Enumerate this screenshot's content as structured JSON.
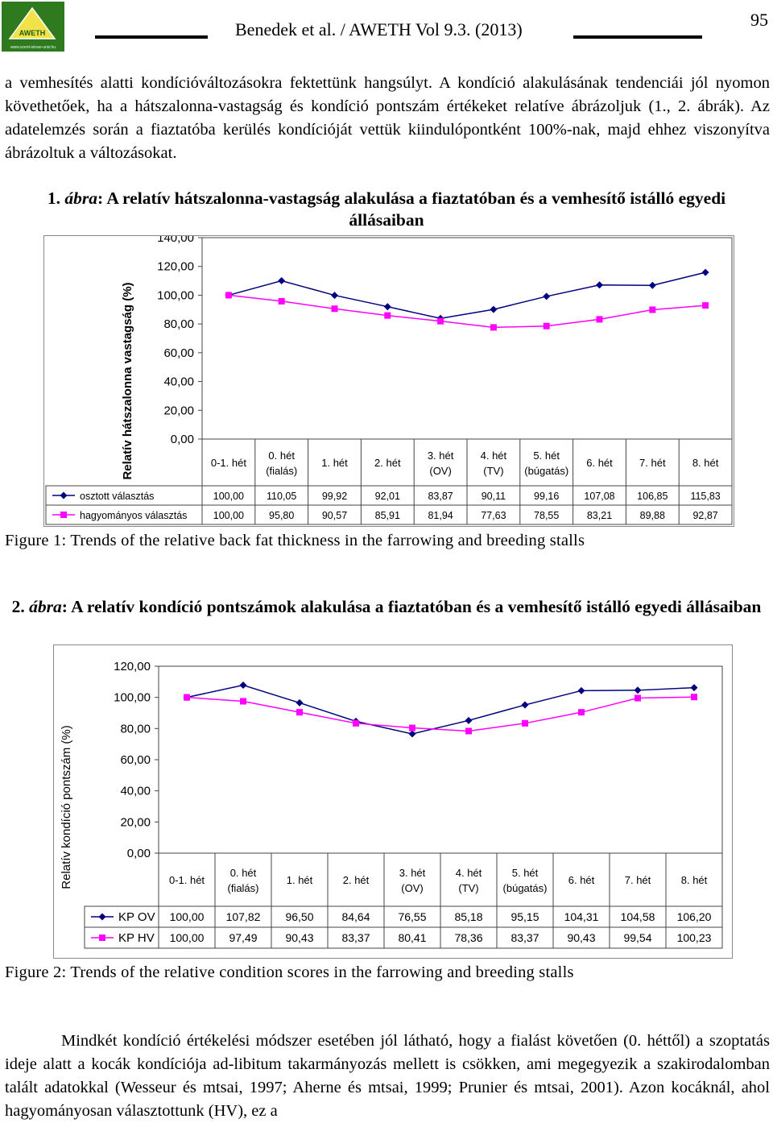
{
  "header": {
    "logo_text": "AWETH",
    "logo_url": "www.szent-istvan-univ.hu",
    "running_head": "Benedek et al. / AWETH Vol 9.3. (2013)",
    "page_number": "95"
  },
  "intro_paragraph": "a vemhesítés alatti kondícióváltozásokra fektettünk hangsúlyt. A kondíció alakulásának tendenciái jól nyomon követhetőek, ha a hátszalonna-vastagság és kondíció pontszám értékeket relatíve ábrázoljuk (1., 2. ábrák). Az adatelemzés során a fiaztatóba kerülés kondícióját vettük kiindulópontként 100%-nak, majd ehhez viszonyítva ábrázoltuk a változásokat.",
  "figure1": {
    "caption_num": "1.",
    "caption_word": "ábra",
    "caption_text": ": A relatív hátszalonna-vastagság alakulása a fiaztatóban és a vemhesítő istálló egyedi állásaiban",
    "english_caption": "Figure 1: Trends of the relative back fat thickness in the farrowing and breeding stalls"
  },
  "figure2": {
    "caption_num": "2.",
    "caption_word": "ábra",
    "caption_text": ": A relatív kondíció pontszámok alakulása a fiaztatóban és a vemhesítő istálló egyedi állásaiban",
    "english_caption": "Figure 2: Trends of the relative condition scores in the farrowing and breeding stalls"
  },
  "closing_paragraph": "Mindkét kondíció értékelési módszer esetében jól látható, hogy a fialást követően (0. héttől) a szoptatás ideje alatt a kocák kondíciója ad-libitum takarmányozás mellett is csökken, ami megegyezik a szakirodalomban talált adatokkal (Wesseur és mtsai, 1997; Aherne és mtsai, 1999; Prunier és mtsai, 2001). Azon kocáknál, ahol hagyományosan választottunk (HV), ez a",
  "chart_data": [
    {
      "type": "line",
      "ylabel": "Relatív hátszalonna vastagság (%)",
      "ylim": [
        0,
        140
      ],
      "yticks": [
        "0,00",
        "20,00",
        "40,00",
        "60,00",
        "80,00",
        "100,00",
        "120,00",
        "140,00"
      ],
      "categories": [
        [
          "0-1. hét"
        ],
        [
          "0. hét",
          "(fialás)"
        ],
        [
          "1. hét"
        ],
        [
          "2. hét"
        ],
        [
          "3. hét",
          "(OV)"
        ],
        [
          "4. hét",
          "(TV)"
        ],
        [
          "5. hét",
          "(búgatás)"
        ],
        [
          "6. hét"
        ],
        [
          "7. hét"
        ],
        [
          "8. hét"
        ]
      ],
      "legend": "data-table",
      "series": [
        {
          "name": "osztott választás",
          "color": "#000080",
          "marker": "diamond",
          "values": [
            100.0,
            110.05,
            99.92,
            92.01,
            83.87,
            90.11,
            99.16,
            107.08,
            106.85,
            115.83
          ],
          "labels": [
            "100,00",
            "110,05",
            "99,92",
            "92,01",
            "83,87",
            "90,11",
            "99,16",
            "107,08",
            "106,85",
            "115,83"
          ]
        },
        {
          "name": "hagyományos választás",
          "color": "#ff00ff",
          "marker": "square",
          "values": [
            100.0,
            95.8,
            90.57,
            85.91,
            81.94,
            77.63,
            78.55,
            83.21,
            89.88,
            92.87
          ],
          "labels": [
            "100,00",
            "95,80",
            "90,57",
            "85,91",
            "81,94",
            "77,63",
            "78,55",
            "83,21",
            "89,88",
            "92,87"
          ]
        }
      ]
    },
    {
      "type": "line",
      "ylabel": "Relatív kondíció pontszám (%)",
      "ylim": [
        0,
        120
      ],
      "yticks": [
        "0,00",
        "20,00",
        "40,00",
        "60,00",
        "80,00",
        "100,00",
        "120,00"
      ],
      "categories": [
        [
          "0-1. hét"
        ],
        [
          "0. hét",
          "(fialás)"
        ],
        [
          "1. hét"
        ],
        [
          "2. hét"
        ],
        [
          "3. hét",
          "(OV)"
        ],
        [
          "4. hét",
          "(TV)"
        ],
        [
          "5. hét",
          "(búgatás)"
        ],
        [
          "6. hét"
        ],
        [
          "7. hét"
        ],
        [
          "8. hét"
        ]
      ],
      "legend": "data-table",
      "series": [
        {
          "name": "KP OV",
          "color": "#000080",
          "marker": "diamond",
          "values": [
            100.0,
            107.82,
            96.5,
            84.64,
            76.55,
            85.18,
            95.15,
            104.31,
            104.58,
            106.2
          ],
          "labels": [
            "100,00",
            "107,82",
            "96,50",
            "84,64",
            "76,55",
            "85,18",
            "95,15",
            "104,31",
            "104,58",
            "106,20"
          ]
        },
        {
          "name": "KP HV",
          "color": "#ff00ff",
          "marker": "square",
          "values": [
            100.0,
            97.49,
            90.43,
            83.37,
            80.41,
            78.36,
            83.37,
            90.43,
            99.54,
            100.23
          ],
          "labels": [
            "100,00",
            "97,49",
            "90,43",
            "83,37",
            "80,41",
            "78,36",
            "83,37",
            "90,43",
            "99,54",
            "100,23"
          ]
        }
      ]
    }
  ]
}
